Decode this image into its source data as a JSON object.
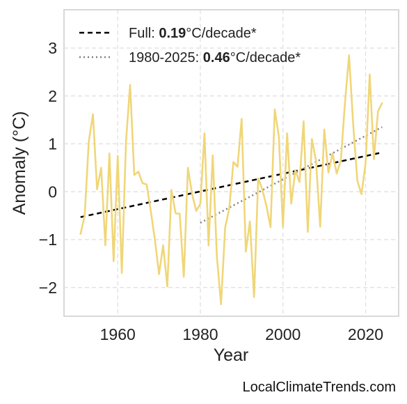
{
  "chart_data": {
    "type": "line",
    "xlabel": "Year",
    "ylabel": "Anomaly (°C)",
    "xlim": [
      1947,
      2028
    ],
    "ylim": [
      -2.6,
      3.8
    ],
    "xticks": [
      1960,
      1980,
      2000,
      2020
    ],
    "xtick_labels": [
      "1960",
      "1980",
      "2000",
      "2020"
    ],
    "yticks": [
      -2,
      -1,
      0,
      1,
      2,
      3
    ],
    "ytick_labels": [
      "−2",
      "−1",
      "0",
      "1",
      "2",
      "3"
    ],
    "grid": true,
    "legend_position": "top-left",
    "series": [
      {
        "color": "#f0d678",
        "x": [
          1951,
          1952,
          1953,
          1954,
          1955,
          1956,
          1957,
          1958,
          1959,
          1960,
          1961,
          1962,
          1963,
          1964,
          1965,
          1966,
          1967,
          1968,
          1969,
          1970,
          1971,
          1972,
          1973,
          1974,
          1975,
          1976,
          1977,
          1978,
          1979,
          1980,
          1981,
          1982,
          1983,
          1984,
          1985,
          1986,
          1987,
          1988,
          1989,
          1990,
          1991,
          1992,
          1993,
          1994,
          1995,
          1996,
          1997,
          1998,
          1999,
          2000,
          2001,
          2002,
          2003,
          2004,
          2005,
          2006,
          2007,
          2008,
          2009,
          2010,
          2011,
          2012,
          2013,
          2014,
          2015,
          2016,
          2017,
          2018,
          2019,
          2020,
          2021,
          2022,
          2023,
          2024
        ],
        "y": [
          -0.88,
          -0.5,
          1.05,
          1.62,
          0.05,
          0.5,
          -1.12,
          0.8,
          -1.45,
          0.75,
          -1.7,
          1.05,
          2.23,
          0.35,
          0.42,
          0.18,
          0.15,
          -0.4,
          -1.0,
          -1.72,
          -1.12,
          -1.98,
          0.04,
          -0.45,
          -0.46,
          -1.78,
          0.5,
          -0.05,
          -0.4,
          -0.25,
          1.22,
          -1.12,
          0.76,
          -1.35,
          -2.35,
          -0.75,
          -0.35,
          0.62,
          0.52,
          1.52,
          -1.25,
          -0.62,
          -2.2,
          0.28,
          0.05,
          -0.3,
          -0.74,
          1.72,
          1.15,
          -0.74,
          1.22,
          -0.25,
          0.45,
          0.2,
          1.47,
          -0.84,
          1.1,
          0.65,
          -0.73,
          1.3,
          0.4,
          0.8,
          0.38,
          0.65,
          1.85,
          2.85,
          1.4,
          0.23,
          -0.05,
          0.6,
          2.45,
          0.68,
          1.68,
          1.85
        ]
      }
    ],
    "trend_lines": [
      {
        "label": "Full: ",
        "value": "0.19",
        "unit": "°C/decade*",
        "style": "dashed",
        "color": "#000000",
        "x": [
          1951,
          2024
        ],
        "y": [
          -0.53,
          0.82
        ]
      },
      {
        "label": "1980-2025: ",
        "value": "0.46",
        "unit": "°C/decade*",
        "style": "dotted",
        "color": "#808080",
        "x": [
          1980,
          2024
        ],
        "y": [
          -0.65,
          1.35
        ]
      }
    ]
  },
  "watermark": "LocalClimateTrends.com"
}
